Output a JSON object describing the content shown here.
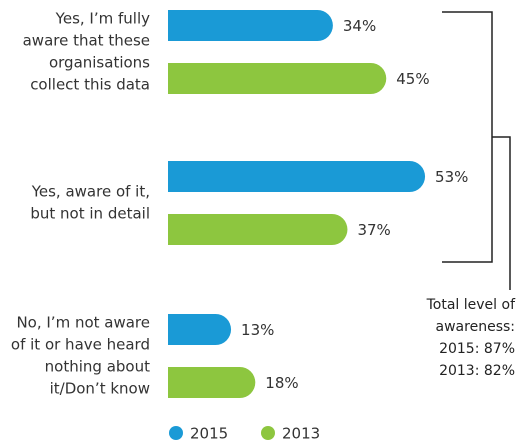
{
  "chart_data": {
    "type": "bar",
    "orientation": "horizontal",
    "categories": [
      [
        "Yes, I’m fully",
        "aware that these",
        "organisations",
        "collect this data"
      ],
      [
        "Yes, aware of it,",
        "but not in detail"
      ],
      [
        "No, I’m not aware",
        "of it or have heard",
        "nothing about",
        "it/Don’t know"
      ]
    ],
    "series": [
      {
        "name": "2015",
        "color": "#1a9ad6",
        "values": [
          34,
          53,
          13
        ],
        "value_labels": [
          "34%",
          "53%",
          "13%"
        ]
      },
      {
        "name": "2013",
        "color": "#8dc63f",
        "values": [
          45,
          37,
          18
        ],
        "value_labels": [
          "45%",
          "37%",
          "18%"
        ]
      }
    ],
    "annotation": [
      "Total level of",
      "awareness:",
      "2015: 87%",
      "2013: 82%"
    ]
  }
}
